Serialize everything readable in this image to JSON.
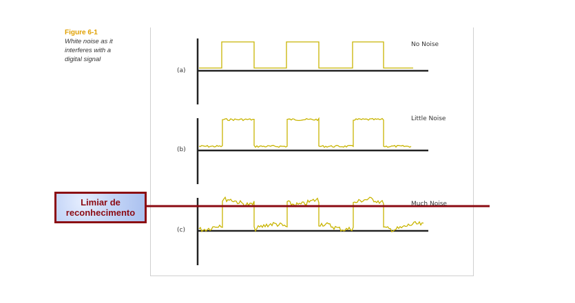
{
  "caption": {
    "title": "Figure 6-1",
    "text": "White noise as it\ninterferes with a\ndigital signal"
  },
  "panels": [
    {
      "label": "(a)",
      "noise_label": "No Noise",
      "noise_level": 0
    },
    {
      "label": "(b)",
      "noise_label": "Little Noise",
      "noise_level": 1
    },
    {
      "label": "(c)",
      "noise_label": "Much Noise",
      "noise_level": 2
    }
  ],
  "threshold": {
    "text": "Limiar de\nreconhecimento",
    "color": "#8b0a12"
  },
  "colors": {
    "signal": "#c8b400",
    "axis": "#222222",
    "caption_title": "#e0a000"
  }
}
